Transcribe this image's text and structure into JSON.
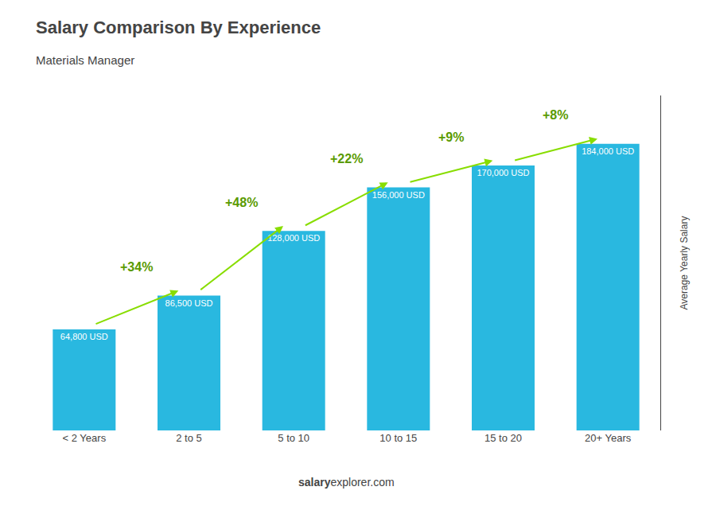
{
  "chart_data": {
    "type": "bar",
    "title": "Salary Comparison By Experience",
    "subtitle": "Materials Manager",
    "categories": [
      "< 2 Years",
      "2 to 5",
      "5 to 10",
      "10 to 15",
      "15 to 20",
      "20+ Years"
    ],
    "values": [
      64800,
      86500,
      128000,
      156000,
      170000,
      184000
    ],
    "value_labels": [
      "64,800 USD",
      "86,500 USD",
      "128,000 USD",
      "156,000 USD",
      "170,000 USD",
      "184,000 USD"
    ],
    "data_labels": true,
    "color": "#29b8e0",
    "ylim": [
      0,
      215000
    ],
    "ylabel": "Average Yearly Salary",
    "tick_labels": "x",
    "grid": false,
    "annotations": [
      "+34%",
      "+48%",
      "+22%",
      "+9%",
      "+8%"
    ],
    "footer": [
      "salary",
      "explorer.com"
    ]
  }
}
